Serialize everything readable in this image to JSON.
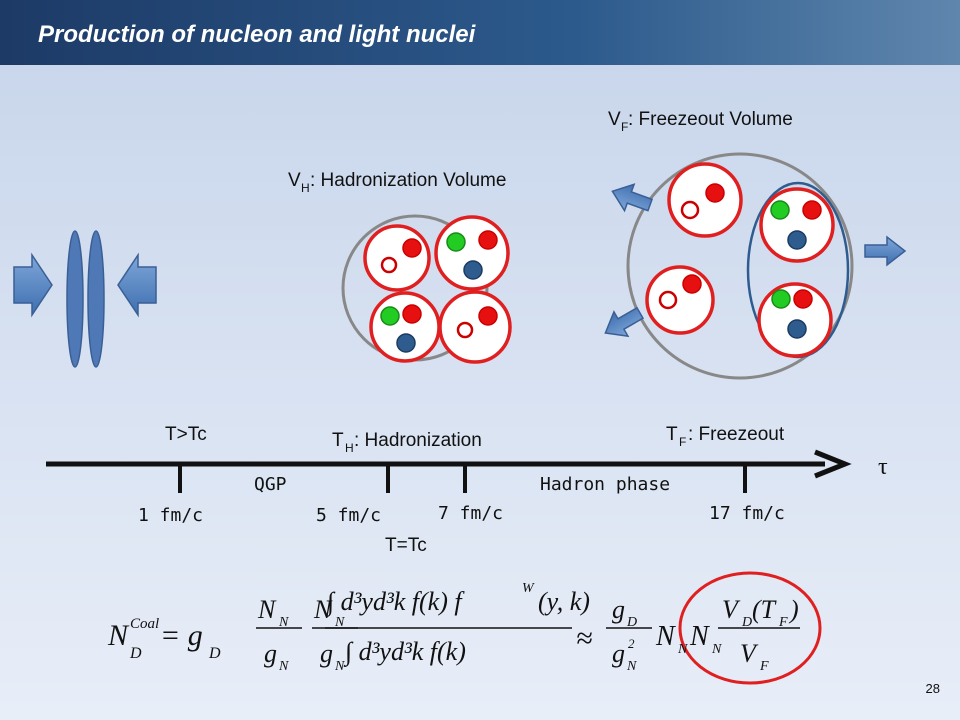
{
  "header": {
    "title": "Production of  nucleon and light nuclei"
  },
  "labels": {
    "freezeout_volume": {
      "main": "V",
      "sub": "F",
      "rest": ": Freezeout Volume"
    },
    "hadronization_volume": {
      "main": "V",
      "sub": "H",
      "rest": ": Hadronization Volume"
    },
    "t_gt_tc": "T>Tc",
    "hadronization": {
      "main": "T",
      "sub": "H",
      "rest": ": Hadronization"
    },
    "freezeout": {
      "main": "T",
      "sub": "F",
      "rest": ": Freezeout"
    },
    "tau": "τ",
    "qgp": "QGP",
    "hadron_phase": "Hadron phase",
    "times": [
      "1 fm/c",
      "5 fm/c",
      "7 fm/c",
      "17 fm/c"
    ],
    "t_eq_tc": "T=Tc"
  },
  "formula": [
    "N",
    "D",
    "Coal",
    "= g",
    "D",
    "N",
    "N",
    "g",
    "N",
    "N",
    "N",
    "g",
    "N",
    "∫ d³yd³k f(k) f",
    "W",
    "(y, k)",
    "∫ d³yd³k f(k)",
    "≈",
    "g",
    "D",
    "g",
    "N",
    "2",
    "N",
    "N",
    "N",
    "N",
    "V",
    "D",
    "(T",
    "F",
    ")",
    "V",
    "F"
  ],
  "page_number": "28"
}
